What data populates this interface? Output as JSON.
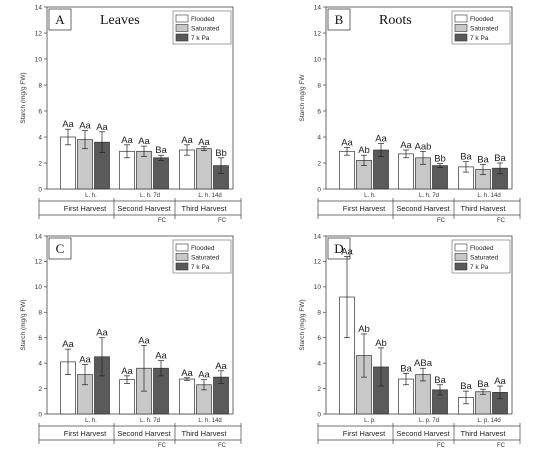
{
  "colors": {
    "flooded": "#ffffff",
    "saturated": "#c8c8c8",
    "kpa7": "#5a5a5a",
    "stroke": "#333333"
  },
  "chart_data": [
    {
      "type": "bar",
      "panel": "A",
      "title": "Leaves",
      "ylabel": "Starch (mg/g FW)",
      "ylim": [
        0,
        14
      ],
      "yticks": [
        0,
        2,
        4,
        6,
        8,
        10,
        12,
        14
      ],
      "legend": {
        "placement": "top-right",
        "entries": [
          "Flooded",
          "Saturated",
          "7 k Pa"
        ]
      },
      "groups": [
        {
          "sub": "L. h.",
          "harvest": "First Harvest",
          "fc": "",
          "values": [
            4.0,
            3.8,
            3.6
          ],
          "errors": [
            0.6,
            0.7,
            0.8
          ],
          "labels": [
            "Aa",
            "Aa",
            "Aa"
          ]
        },
        {
          "sub": "L. h. 7d",
          "harvest": "Second Harvest",
          "fc": "FC",
          "values": [
            2.9,
            2.9,
            2.4
          ],
          "errors": [
            0.5,
            0.4,
            0.2
          ],
          "labels": [
            "Aa",
            "Aa",
            "Ba"
          ]
        },
        {
          "sub": "L. h. 14d",
          "harvest": "Third Harvest",
          "fc": "FC",
          "values": [
            3.0,
            3.1,
            1.8
          ],
          "errors": [
            0.4,
            0.15,
            0.6
          ],
          "labels": [
            "Aa",
            "Aa",
            "Bb"
          ]
        }
      ]
    },
    {
      "type": "bar",
      "panel": "B",
      "title": "Roots",
      "ylabel": "Starch mg/g FW",
      "ylim": [
        0,
        14
      ],
      "yticks": [
        0,
        2,
        4,
        6,
        8,
        10,
        12,
        14
      ],
      "legend": {
        "placement": "top-right",
        "entries": [
          "Flooded",
          "Saturated",
          "7 k Pa"
        ]
      },
      "groups": [
        {
          "sub": "L. h.",
          "harvest": "First Harvest",
          "fc": "",
          "values": [
            2.9,
            2.2,
            3.0
          ],
          "errors": [
            0.3,
            0.4,
            0.5
          ],
          "labels": [
            "Aa",
            "Ab",
            "Aa"
          ]
        },
        {
          "sub": "L. h. 7d",
          "harvest": "Second Harvest",
          "fc": "FC",
          "values": [
            2.7,
            2.4,
            1.8
          ],
          "errors": [
            0.3,
            0.5,
            0.15
          ],
          "labels": [
            "Aa",
            "Aab",
            "Bb"
          ]
        },
        {
          "sub": "L. h. 14d",
          "harvest": "Third Harvest",
          "fc": "FC",
          "values": [
            1.7,
            1.5,
            1.6
          ],
          "errors": [
            0.4,
            0.4,
            0.4
          ],
          "labels": [
            "Ba",
            "Ba",
            "Ba"
          ]
        }
      ]
    },
    {
      "type": "bar",
      "panel": "C",
      "title": "",
      "ylabel": "Starch (mg/g FW)",
      "ylim": [
        0,
        14
      ],
      "yticks": [
        0,
        2,
        4,
        6,
        8,
        10,
        12,
        14
      ],
      "legend": {
        "placement": "top-right",
        "entries": [
          "Flooded",
          "Saturated",
          "7 k Pa"
        ]
      },
      "groups": [
        {
          "sub": "L. h.",
          "harvest": "First Harvest",
          "fc": "",
          "values": [
            4.1,
            3.1,
            4.5
          ],
          "errors": [
            1.0,
            0.8,
            1.5
          ],
          "labels": [
            "Aa",
            "Aa",
            "Aa"
          ]
        },
        {
          "sub": "L. h. 7d",
          "harvest": "Second Harvest",
          "fc": "FC",
          "values": [
            2.7,
            3.6,
            3.6
          ],
          "errors": [
            0.3,
            1.8,
            0.6
          ],
          "labels": [
            "Aa",
            "Aa",
            "Aa"
          ]
        },
        {
          "sub": "L. h. 14d",
          "harvest": "Third Harvest",
          "fc": "FC",
          "values": [
            2.75,
            2.3,
            2.9
          ],
          "errors": [
            0.1,
            0.4,
            0.5
          ],
          "labels": [
            "Aa",
            "Aa",
            "Aa"
          ]
        }
      ]
    },
    {
      "type": "bar",
      "panel": "D",
      "title": "",
      "ylabel": "Starch (mg/g FW)",
      "ylim": [
        0,
        14
      ],
      "yticks": [
        0,
        2,
        4,
        6,
        8,
        10,
        12,
        14
      ],
      "legend": {
        "placement": "top-right",
        "entries": [
          "Flooded",
          "Saturated",
          "7 k Pa"
        ]
      },
      "groups": [
        {
          "sub": "L. p.",
          "harvest": "First Harvest",
          "fc": "",
          "values": [
            9.2,
            4.6,
            3.7
          ],
          "errors": [
            3.2,
            1.7,
            1.5
          ],
          "labels": [
            "Aa",
            "Ab",
            "Ab"
          ]
        },
        {
          "sub": "L. p. 7d",
          "harvest": "Second Harvest",
          "fc": "FC",
          "values": [
            2.75,
            3.1,
            1.9
          ],
          "errors": [
            0.45,
            0.5,
            0.4
          ],
          "labels": [
            "Ba",
            "ABa",
            "Ba"
          ]
        },
        {
          "sub": "L. p. 14d",
          "harvest": "Third Harvest",
          "fc": "FC",
          "values": [
            1.3,
            1.75,
            1.7
          ],
          "errors": [
            0.5,
            0.2,
            0.5
          ],
          "labels": [
            "Ba",
            "Ba",
            "Aa"
          ]
        }
      ]
    }
  ]
}
